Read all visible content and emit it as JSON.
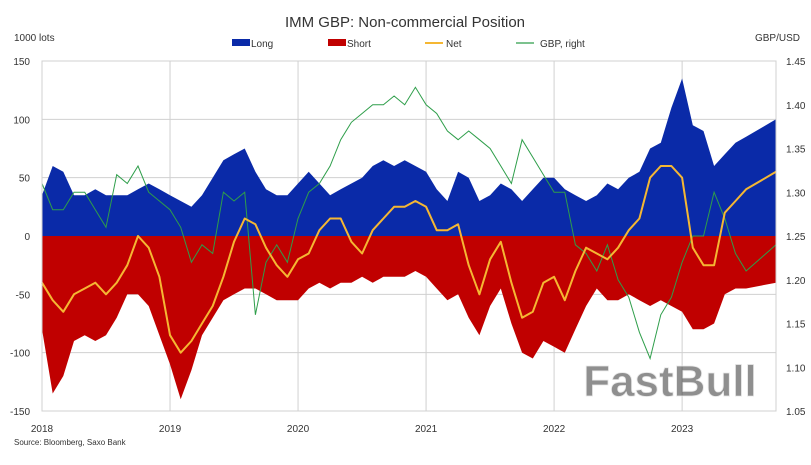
{
  "chart_data": {
    "type": "area",
    "title": "IMM GBP: Non-commercial Position",
    "ylabel": "1000  lots",
    "y2label": "GBP/USD",
    "source": "Source: Bloomberg, Saxo Bank",
    "watermark": "FastBull",
    "ylim": [
      -150,
      150
    ],
    "yticks": [
      "150",
      "100",
      "50",
      "0",
      "-50",
      "-100",
      "-150"
    ],
    "y2lim": [
      1.05,
      1.45
    ],
    "y2ticks": [
      "1.45",
      "1.40",
      "1.35",
      "1.30",
      "1.25",
      "1.20",
      "1.15",
      "1.10",
      "1.05"
    ],
    "xticks": [
      "2018",
      "2019",
      "2020",
      "2021",
      "2022",
      "2023"
    ],
    "grid": true,
    "legend_position": "top",
    "colors": {
      "long": "#0a2aa8",
      "short": "#c00000",
      "net": "#f5b733",
      "gbp": "#2e9e4a",
      "grid": "#d0d0d0"
    },
    "x_start": "2018-01",
    "x_step": "month",
    "series": [
      {
        "name": "Long",
        "kind": "area",
        "values": [
          35,
          60,
          55,
          35,
          35,
          40,
          35,
          35,
          35,
          40,
          45,
          40,
          35,
          30,
          25,
          35,
          50,
          65,
          70,
          75,
          55,
          40,
          35,
          35,
          45,
          55,
          45,
          35,
          40,
          45,
          50,
          60,
          65,
          60,
          65,
          60,
          55,
          40,
          30,
          55,
          50,
          30,
          35,
          45,
          40,
          30,
          40,
          50,
          50,
          40,
          35,
          30,
          35,
          45,
          40,
          50,
          55,
          75,
          80,
          110,
          135,
          95,
          90,
          60,
          70,
          80,
          85,
          100
        ]
      },
      {
        "name": "Short",
        "kind": "area",
        "values": [
          -80,
          -135,
          -120,
          -90,
          -85,
          -90,
          -85,
          -70,
          -50,
          -50,
          -60,
          -85,
          -110,
          -140,
          -115,
          -85,
          -70,
          -55,
          -50,
          -45,
          -45,
          -50,
          -55,
          -55,
          -55,
          -45,
          -40,
          -45,
          -40,
          -40,
          -35,
          -40,
          -35,
          -35,
          -35,
          -30,
          -35,
          -45,
          -55,
          -50,
          -70,
          -85,
          -60,
          -45,
          -75,
          -100,
          -105,
          -90,
          -95,
          -100,
          -80,
          -60,
          -45,
          -55,
          -55,
          -50,
          -55,
          -60,
          -55,
          -60,
          -65,
          -80,
          -80,
          -75,
          -50,
          -45,
          -45,
          -40
        ]
      },
      {
        "name": "Net",
        "kind": "line",
        "values": [
          -40,
          -55,
          -65,
          -50,
          -45,
          -40,
          -50,
          -40,
          -25,
          0,
          -10,
          -35,
          -85,
          -100,
          -90,
          -75,
          -60,
          -35,
          -5,
          15,
          10,
          -10,
          -25,
          -35,
          -20,
          -15,
          5,
          15,
          15,
          -5,
          -15,
          5,
          15,
          25,
          25,
          30,
          25,
          5,
          5,
          10,
          -25,
          -50,
          -20,
          -5,
          -40,
          -70,
          -65,
          -40,
          -35,
          -55,
          -30,
          -10,
          -15,
          -20,
          -10,
          5,
          15,
          50,
          60,
          60,
          50,
          -10,
          -25,
          -25,
          20,
          30,
          40,
          55
        ]
      },
      {
        "name": "GBP, right",
        "kind": "line",
        "axis": "right",
        "values": [
          1.31,
          1.28,
          1.28,
          1.3,
          1.3,
          1.28,
          1.26,
          1.32,
          1.31,
          1.33,
          1.3,
          1.29,
          1.28,
          1.26,
          1.22,
          1.24,
          1.23,
          1.3,
          1.29,
          1.3,
          1.16,
          1.22,
          1.24,
          1.22,
          1.27,
          1.3,
          1.31,
          1.33,
          1.36,
          1.38,
          1.39,
          1.4,
          1.4,
          1.41,
          1.4,
          1.42,
          1.4,
          1.39,
          1.37,
          1.36,
          1.37,
          1.36,
          1.35,
          1.33,
          1.31,
          1.36,
          1.34,
          1.32,
          1.3,
          1.3,
          1.24,
          1.23,
          1.21,
          1.24,
          1.2,
          1.18,
          1.14,
          1.11,
          1.16,
          1.18,
          1.22,
          1.25,
          1.25,
          1.3,
          1.27,
          1.23,
          1.21,
          1.24
        ]
      }
    ]
  }
}
